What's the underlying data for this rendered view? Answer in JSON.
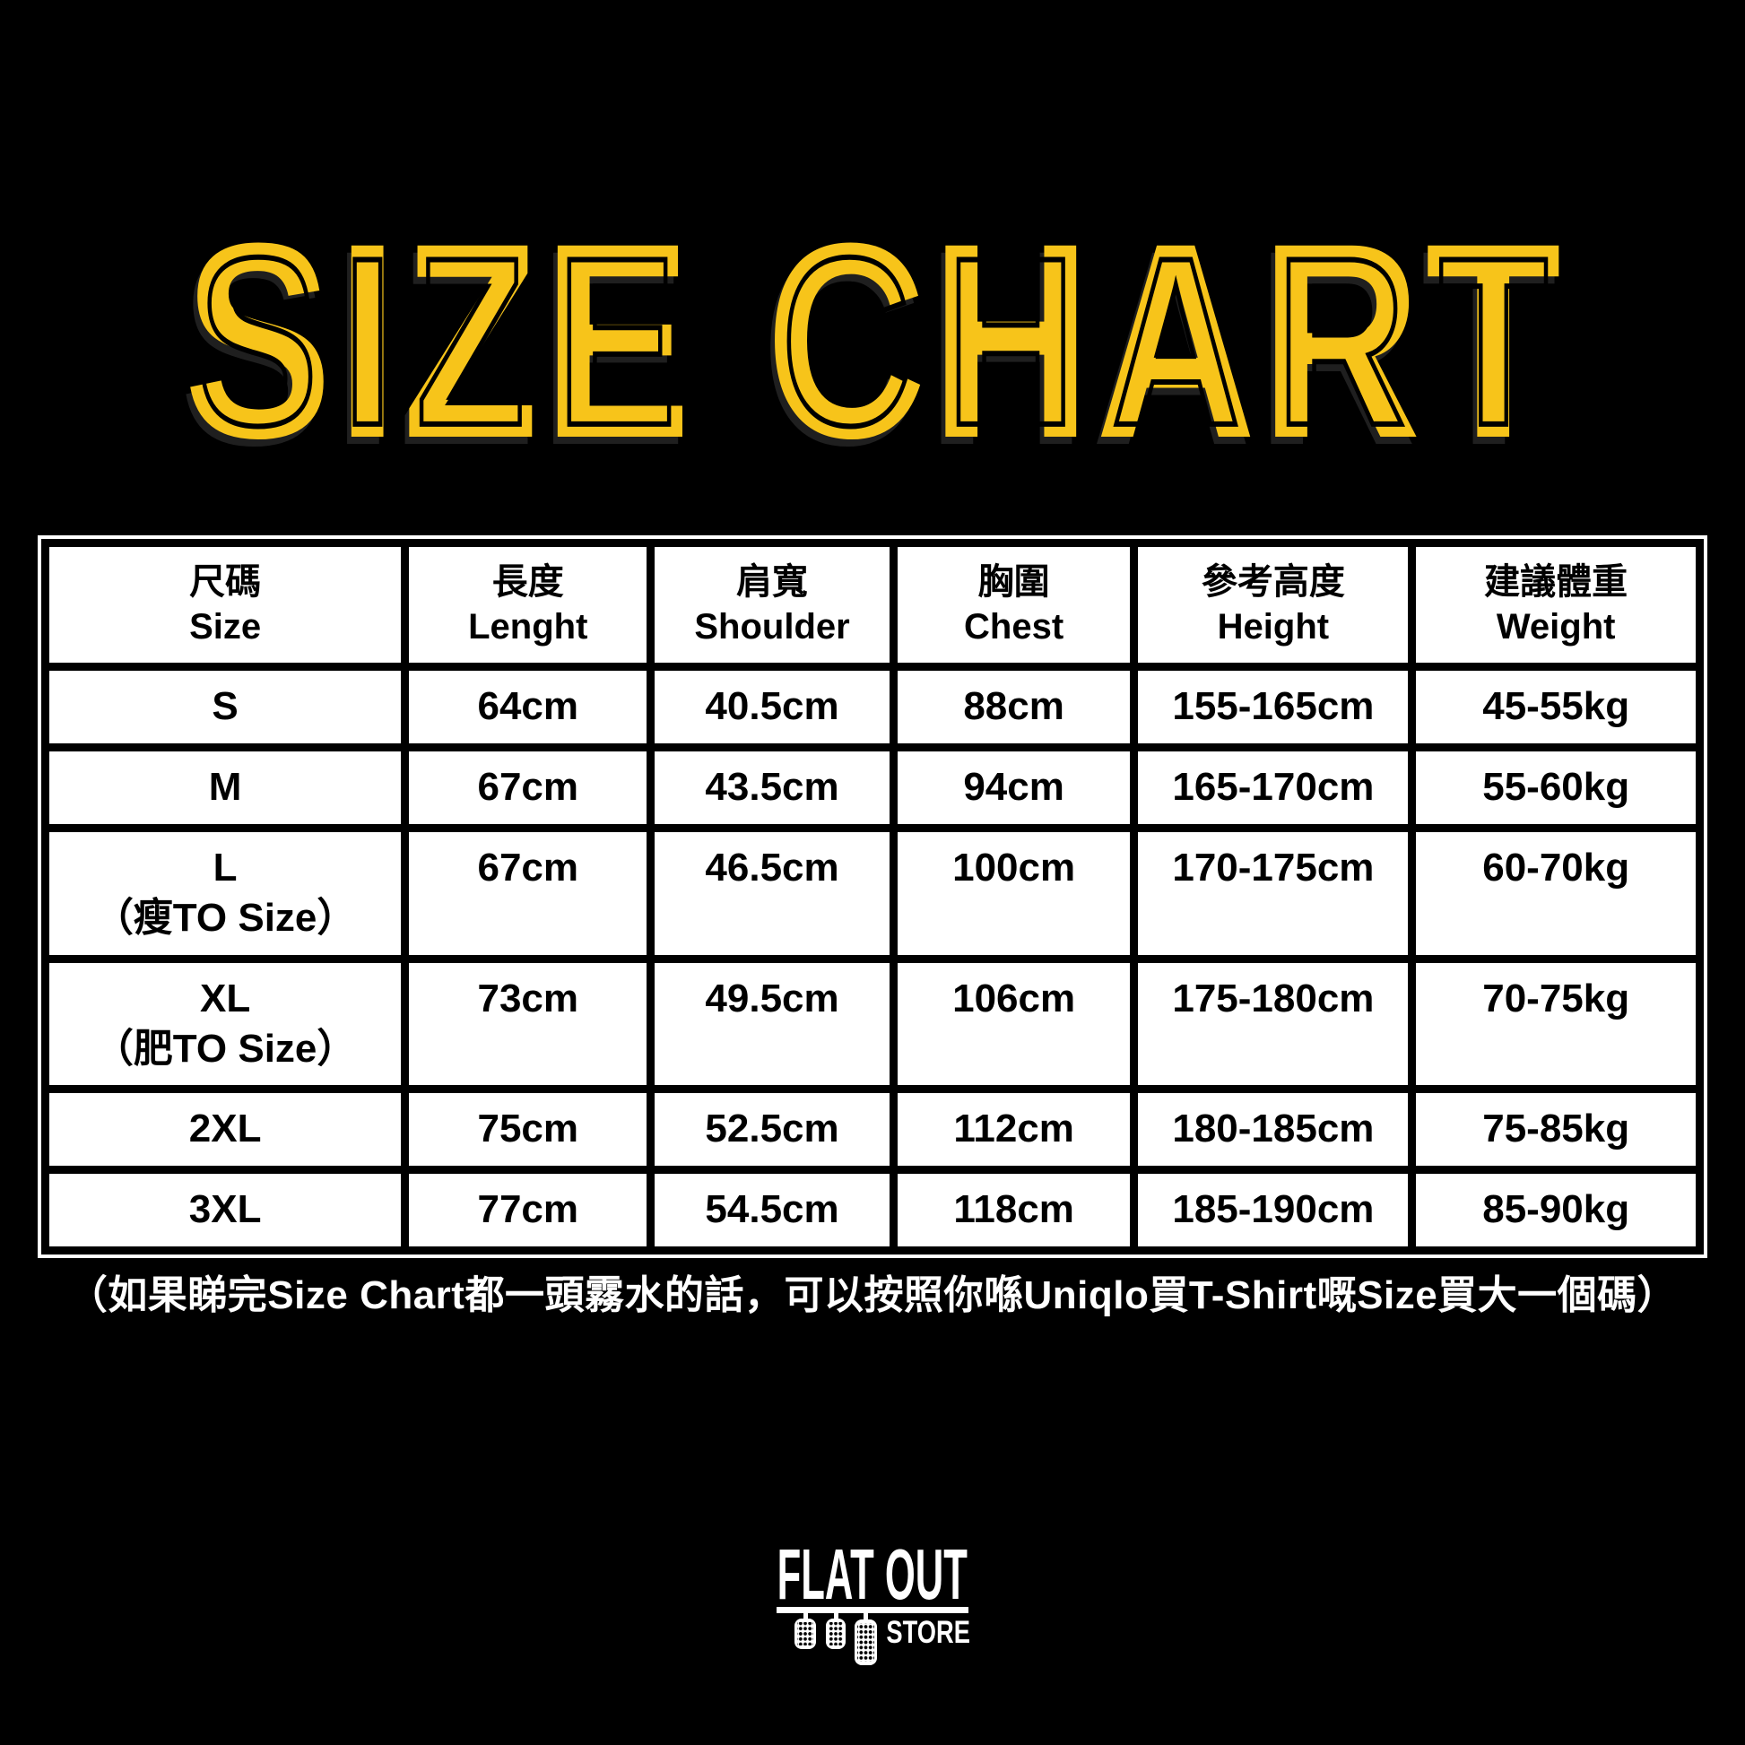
{
  "background": "#000000",
  "title": {
    "text": "SIZE CHART",
    "color": "#F7C41A"
  },
  "table": {
    "columns": [
      {
        "zh": "尺碼",
        "en": "Size"
      },
      {
        "zh": "長度",
        "en": "Lenght"
      },
      {
        "zh": "肩寬",
        "en": "Shoulder"
      },
      {
        "zh": "胸圍",
        "en": "Chest"
      },
      {
        "zh": "參考高度",
        "en": "Height"
      },
      {
        "zh": "建議體重",
        "en": "Weight"
      }
    ],
    "rows": [
      {
        "size": "S",
        "size_note": "",
        "length": "64cm",
        "shoulder": "40.5cm",
        "chest": "88cm",
        "height": "155-165cm",
        "weight": "45-55kg"
      },
      {
        "size": "M",
        "size_note": "",
        "length": "67cm",
        "shoulder": "43.5cm",
        "chest": "94cm",
        "height": "165-170cm",
        "weight": "55-60kg"
      },
      {
        "size": "L",
        "size_note": "（瘦TO Size）",
        "length": "67cm",
        "shoulder": "46.5cm",
        "chest": "100cm",
        "height": "170-175cm",
        "weight": "60-70kg"
      },
      {
        "size": "XL",
        "size_note": "（肥TO Size）",
        "length": "73cm",
        "shoulder": "49.5cm",
        "chest": "106cm",
        "height": "175-180cm",
        "weight": "70-75kg"
      },
      {
        "size": "2XL",
        "size_note": "",
        "length": "75cm",
        "shoulder": "52.5cm",
        "chest": "112cm",
        "height": "180-185cm",
        "weight": "75-85kg"
      },
      {
        "size": "3XL",
        "size_note": "",
        "length": "77cm",
        "shoulder": "54.5cm",
        "chest": "118cm",
        "height": "185-190cm",
        "weight": "85-90kg"
      }
    ]
  },
  "note": "（如果睇完Size Chart都一頭霧水的話，可以按照你喺Uniqlo買T-Shirt嘅Size買大一個碼）",
  "logo": {
    "line1": "FLAT OUT",
    "line2": "STORE"
  },
  "chart_data": {
    "type": "table",
    "title": "SIZE CHART",
    "columns": [
      "尺碼 Size",
      "長度 Lenght",
      "肩寬 Shoulder",
      "胸圍 Chest",
      "參考高度 Height",
      "建議體重 Weight"
    ],
    "rows": [
      [
        "S",
        "64cm",
        "40.5cm",
        "88cm",
        "155-165cm",
        "45-55kg"
      ],
      [
        "M",
        "67cm",
        "43.5cm",
        "94cm",
        "165-170cm",
        "55-60kg"
      ],
      [
        "L（瘦TO Size）",
        "67cm",
        "46.5cm",
        "100cm",
        "170-175cm",
        "60-70kg"
      ],
      [
        "XL（肥TO Size）",
        "73cm",
        "49.5cm",
        "106cm",
        "175-180cm",
        "70-75kg"
      ],
      [
        "2XL",
        "75cm",
        "52.5cm",
        "112cm",
        "180-185cm",
        "75-85kg"
      ],
      [
        "3XL",
        "77cm",
        "54.5cm",
        "118cm",
        "185-190cm",
        "85-90kg"
      ]
    ],
    "note": "（如果睇完Size Chart都一頭霧水的話，可以按照你喺Uniqlo買T-Shirt嘅Size買大一個碼）",
    "accent_color": "#F7C41A",
    "background": "#000000"
  }
}
